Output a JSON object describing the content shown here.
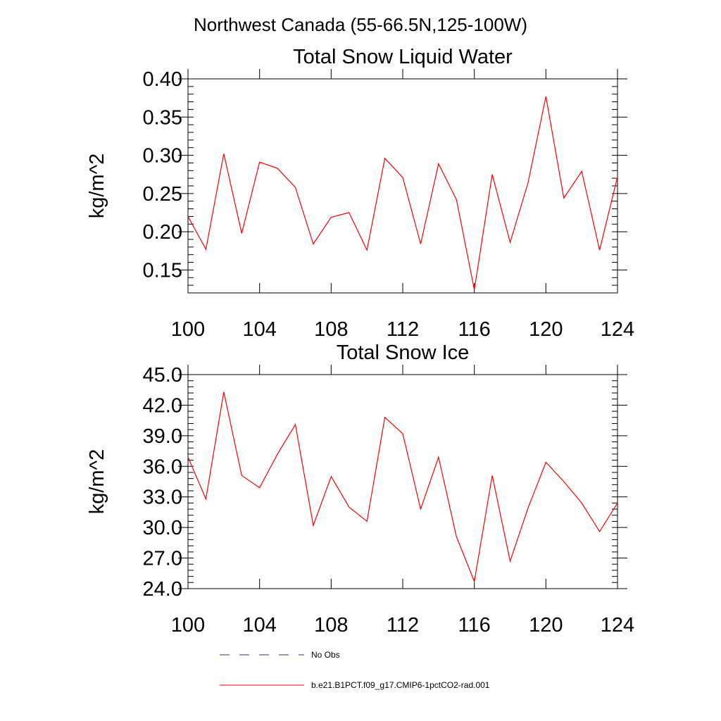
{
  "figure": {
    "suptitle": "Northwest Canada (55-66.5N,125-100W)"
  },
  "chart_data": [
    {
      "type": "line",
      "title": "Total Snow Liquid Water",
      "xlabel": "",
      "ylabel": "kg/m^2",
      "xlim": [
        100,
        124
      ],
      "ylim": [
        0.12,
        0.4
      ],
      "xticks": [
        100,
        104,
        108,
        112,
        116,
        120,
        124
      ],
      "xtick_labels": [
        "100",
        "104",
        "108",
        "112",
        "116",
        "120",
        "124"
      ],
      "yticks": [
        0.15,
        0.2,
        0.25,
        0.3,
        0.35,
        0.4
      ],
      "ytick_labels": [
        "0.15",
        "0.20",
        "0.25",
        "0.30",
        "0.35",
        "0.40"
      ],
      "grid": false,
      "series": [
        {
          "name": "b.e21.B1PCT.f09_g17.CMIP6-1pctCO2-rad.001",
          "color": "#ff0000",
          "x": [
            100,
            101,
            102,
            103,
            104,
            105,
            106,
            107,
            108,
            109,
            110,
            111,
            112,
            113,
            114,
            115,
            116,
            117,
            118,
            119,
            120,
            121,
            122,
            123,
            124
          ],
          "y": [
            0.22,
            0.177,
            0.302,
            0.198,
            0.291,
            0.283,
            0.258,
            0.184,
            0.219,
            0.225,
            0.176,
            0.296,
            0.271,
            0.184,
            0.289,
            0.242,
            0.124,
            0.275,
            0.186,
            0.264,
            0.377,
            0.244,
            0.279,
            0.176,
            0.272
          ]
        }
      ]
    },
    {
      "type": "line",
      "title": "Total Snow Ice",
      "xlabel": "",
      "ylabel": "kg/m^2",
      "xlim": [
        100,
        124
      ],
      "ylim": [
        24.0,
        45.0
      ],
      "xticks": [
        100,
        104,
        108,
        112,
        116,
        120,
        124
      ],
      "xtick_labels": [
        "100",
        "104",
        "108",
        "112",
        "116",
        "120",
        "124"
      ],
      "yticks": [
        24.0,
        27.0,
        30.0,
        33.0,
        36.0,
        39.0,
        42.0,
        45.0
      ],
      "ytick_labels": [
        "24.0",
        "27.0",
        "30.0",
        "33.0",
        "36.0",
        "39.0",
        "42.0",
        "45.0"
      ],
      "grid": false,
      "series": [
        {
          "name": "b.e21.B1PCT.f09_g17.CMIP6-1pctCO2-rad.001",
          "color": "#ff0000",
          "x": [
            100,
            101,
            102,
            103,
            104,
            105,
            106,
            107,
            108,
            109,
            110,
            111,
            112,
            113,
            114,
            115,
            116,
            117,
            118,
            119,
            120,
            121,
            122,
            123,
            124
          ],
          "y": [
            36.9,
            32.8,
            43.3,
            35.1,
            33.9,
            37.2,
            40.1,
            30.2,
            35.0,
            32.0,
            30.6,
            40.8,
            39.2,
            31.8,
            36.9,
            29.1,
            24.7,
            35.1,
            26.7,
            31.9,
            36.4,
            34.5,
            32.4,
            29.6,
            32.4
          ]
        }
      ]
    }
  ],
  "legend": {
    "placement": "bottom",
    "items": [
      {
        "label": "No Obs",
        "style": "dashed",
        "color": "#333399"
      },
      {
        "label": "b.e21.B1PCT.f09_g17.CMIP6-1pctCO2-rad.001",
        "style": "solid",
        "color": "#ff0000"
      }
    ]
  }
}
